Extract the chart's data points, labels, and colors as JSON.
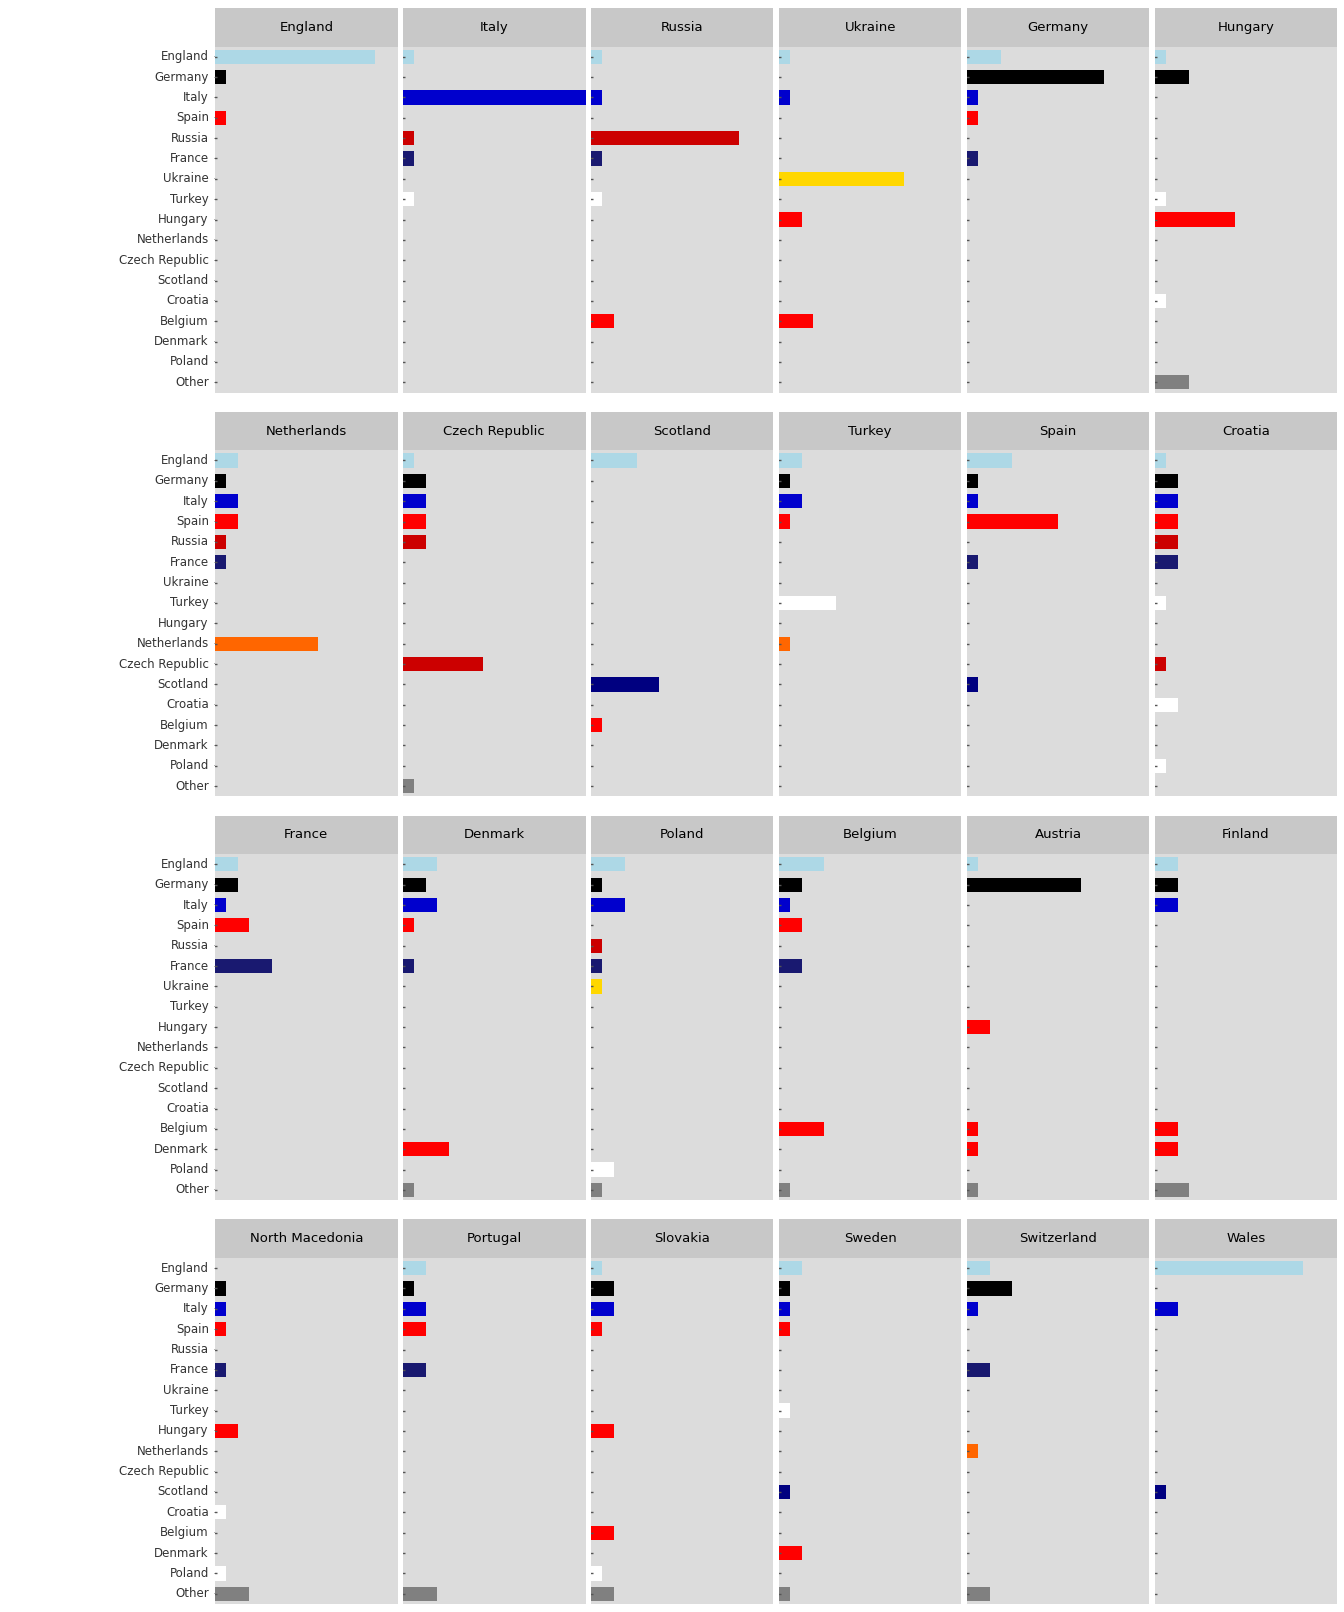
{
  "row_labels": [
    "England",
    "Germany",
    "Italy",
    "Spain",
    "Russia",
    "France",
    "Ukraine",
    "Turkey",
    "Hungary",
    "Netherlands",
    "Czech Republic",
    "Scotland",
    "Croatia",
    "Belgium",
    "Denmark",
    "Poland",
    "Other"
  ],
  "panel_teams": [
    [
      "England",
      "Italy",
      "Russia",
      "Ukraine",
      "Germany",
      "Hungary"
    ],
    [
      "Netherlands",
      "Czech Republic",
      "Scotland",
      "Turkey",
      "Spain",
      "Croatia"
    ],
    [
      "France",
      "Denmark",
      "Poland",
      "Belgium",
      "Austria",
      "Finland"
    ],
    [
      "North Macedonia",
      "Portugal",
      "Slovakia",
      "Sweden",
      "Switzerland",
      "Wales"
    ]
  ],
  "colors": {
    "England": "#ADD8E6",
    "Germany": "#000000",
    "Italy": "#0000CD",
    "Spain": "#FF0000",
    "Russia": "#CC0000",
    "France": "#191970",
    "Ukraine": "#FFD700",
    "Turkey": "#FFFFFF",
    "Hungary": "#FF0000",
    "Netherlands": "#FF6600",
    "Czech Republic": "#CC0000",
    "Scotland": "#000080",
    "Croatia": "#FFFFFF",
    "Belgium": "#FF0000",
    "Denmark": "#FF0000",
    "Poland": "#FFFFFF",
    "Other": "#808080"
  },
  "other_colors": {
    "Hungary": [
      "#808080",
      "#000080",
      "#FF0000"
    ],
    "Czech Republic": [
      "#808080"
    ],
    "Denmark": [
      "#FFD700"
    ],
    "Poland": [
      "#808080"
    ],
    "Belgium": [
      "#808080"
    ],
    "Austria": [
      "#FF0000"
    ],
    "Finland": [
      "#808080",
      "#FFD700",
      "#808080"
    ],
    "North Macedonia": [
      "#808080",
      "#FF0000"
    ],
    "Portugal": [
      "#FF0000"
    ],
    "Slovakia": [
      "#FFD700",
      "#808080"
    ],
    "Sweden": [
      "#808080"
    ],
    "Switzerland": [
      "#808080",
      "#FF6600"
    ]
  },
  "data": {
    "England": {
      "England": 14,
      "Germany": 1,
      "Italy": 0,
      "Spain": 1,
      "Russia": 0,
      "France": 0,
      "Ukraine": 0,
      "Turkey": 0,
      "Hungary": 0,
      "Netherlands": 0,
      "Czech Republic": 0,
      "Scotland": 0,
      "Croatia": 0,
      "Belgium": 0,
      "Denmark": 0,
      "Poland": 0,
      "Other": 0
    },
    "Italy": {
      "England": 1,
      "Germany": 0,
      "Italy": 16,
      "Spain": 0,
      "Russia": 1,
      "France": 1,
      "Ukraine": 0,
      "Turkey": 1,
      "Hungary": 0,
      "Netherlands": 0,
      "Czech Republic": 0,
      "Scotland": 0,
      "Croatia": 0,
      "Belgium": 0,
      "Denmark": 0,
      "Poland": 0,
      "Other": 0
    },
    "Russia": {
      "England": 1,
      "Germany": 0,
      "Italy": 1,
      "Spain": 0,
      "Russia": 13,
      "France": 1,
      "Ukraine": 0,
      "Turkey": 1,
      "Hungary": 0,
      "Netherlands": 0,
      "Czech Republic": 0,
      "Scotland": 0,
      "Croatia": 0,
      "Belgium": 2,
      "Denmark": 0,
      "Poland": 0,
      "Other": 0
    },
    "Ukraine": {
      "England": 1,
      "Germany": 0,
      "Italy": 1,
      "Spain": 0,
      "Russia": 0,
      "France": 0,
      "Ukraine": 11,
      "Turkey": 0,
      "Hungary": 2,
      "Netherlands": 0,
      "Czech Republic": 0,
      "Scotland": 0,
      "Croatia": 0,
      "Belgium": 3,
      "Denmark": 0,
      "Poland": 0,
      "Other": 0
    },
    "Germany": {
      "England": 3,
      "Germany": 12,
      "Italy": 1,
      "Spain": 1,
      "Russia": 0,
      "France": 1,
      "Ukraine": 0,
      "Turkey": 0,
      "Hungary": 0,
      "Netherlands": 0,
      "Czech Republic": 0,
      "Scotland": 0,
      "Croatia": 0,
      "Belgium": 0,
      "Denmark": 0,
      "Poland": 0,
      "Other": 0
    },
    "Hungary": {
      "England": 1,
      "Germany": 3,
      "Italy": 0,
      "Spain": 0,
      "Russia": 0,
      "France": 0,
      "Ukraine": 0,
      "Turkey": 1,
      "Hungary": 7,
      "Netherlands": 0,
      "Czech Republic": 0,
      "Scotland": 0,
      "Croatia": 1,
      "Belgium": 0,
      "Denmark": 0,
      "Poland": 0,
      "Other": 3
    },
    "Netherlands": {
      "England": 2,
      "Germany": 1,
      "Italy": 2,
      "Spain": 2,
      "Russia": 1,
      "France": 1,
      "Ukraine": 0,
      "Turkey": 0,
      "Hungary": 0,
      "Netherlands": 9,
      "Czech Republic": 0,
      "Scotland": 0,
      "Croatia": 0,
      "Belgium": 0,
      "Denmark": 0,
      "Poland": 0,
      "Other": 0
    },
    "Czech Republic": {
      "England": 1,
      "Germany": 2,
      "Italy": 2,
      "Spain": 2,
      "Russia": 2,
      "France": 0,
      "Ukraine": 0,
      "Turkey": 0,
      "Hungary": 0,
      "Netherlands": 0,
      "Czech Republic": 7,
      "Scotland": 0,
      "Croatia": 0,
      "Belgium": 0,
      "Denmark": 0,
      "Poland": 0,
      "Other": 1
    },
    "Scotland": {
      "England": 4,
      "Germany": 0,
      "Italy": 0,
      "Spain": 0,
      "Russia": 0,
      "France": 0,
      "Ukraine": 0,
      "Turkey": 0,
      "Hungary": 0,
      "Netherlands": 0,
      "Czech Republic": 0,
      "Scotland": 6,
      "Croatia": 0,
      "Belgium": 1,
      "Denmark": 0,
      "Poland": 0,
      "Other": 0
    },
    "Turkey": {
      "England": 2,
      "Germany": 1,
      "Italy": 2,
      "Spain": 1,
      "Russia": 0,
      "France": 0,
      "Ukraine": 0,
      "Turkey": 5,
      "Hungary": 0,
      "Netherlands": 1,
      "Czech Republic": 0,
      "Scotland": 0,
      "Croatia": 0,
      "Belgium": 0,
      "Denmark": 0,
      "Poland": 0,
      "Other": 0
    },
    "Spain": {
      "England": 4,
      "Germany": 1,
      "Italy": 1,
      "Spain": 8,
      "Russia": 0,
      "France": 1,
      "Ukraine": 0,
      "Turkey": 0,
      "Hungary": 0,
      "Netherlands": 0,
      "Czech Republic": 0,
      "Scotland": 1,
      "Croatia": 0,
      "Belgium": 0,
      "Denmark": 0,
      "Poland": 0,
      "Other": 0
    },
    "Croatia": {
      "England": 1,
      "Germany": 2,
      "Italy": 2,
      "Spain": 2,
      "Russia": 2,
      "France": 2,
      "Ukraine": 0,
      "Turkey": 1,
      "Hungary": 0,
      "Netherlands": 0,
      "Czech Republic": 1,
      "Scotland": 0,
      "Croatia": 2,
      "Belgium": 0,
      "Denmark": 0,
      "Poland": 1,
      "Other": 0
    },
    "France": {
      "England": 2,
      "Germany": 2,
      "Italy": 1,
      "Spain": 3,
      "Russia": 0,
      "France": 5,
      "Ukraine": 0,
      "Turkey": 0,
      "Hungary": 0,
      "Netherlands": 0,
      "Czech Republic": 0,
      "Scotland": 0,
      "Croatia": 0,
      "Belgium": 0,
      "Denmark": 0,
      "Poland": 0,
      "Other": 0
    },
    "Denmark": {
      "England": 3,
      "Germany": 2,
      "Italy": 3,
      "Spain": 1,
      "Russia": 0,
      "France": 1,
      "Ukraine": 0,
      "Turkey": 0,
      "Hungary": 0,
      "Netherlands": 0,
      "Czech Republic": 0,
      "Scotland": 0,
      "Croatia": 0,
      "Belgium": 0,
      "Denmark": 4,
      "Poland": 0,
      "Other": 1
    },
    "Poland": {
      "England": 3,
      "Germany": 1,
      "Italy": 3,
      "Spain": 0,
      "Russia": 1,
      "France": 1,
      "Ukraine": 1,
      "Turkey": 0,
      "Hungary": 0,
      "Netherlands": 0,
      "Czech Republic": 0,
      "Scotland": 0,
      "Croatia": 0,
      "Belgium": 0,
      "Denmark": 0,
      "Poland": 2,
      "Other": 1
    },
    "Belgium": {
      "England": 4,
      "Germany": 2,
      "Italy": 1,
      "Spain": 2,
      "Russia": 0,
      "France": 2,
      "Ukraine": 0,
      "Turkey": 0,
      "Hungary": 0,
      "Netherlands": 0,
      "Czech Republic": 0,
      "Scotland": 0,
      "Croatia": 0,
      "Belgium": 4,
      "Denmark": 0,
      "Poland": 0,
      "Other": 1
    },
    "Austria": {
      "England": 1,
      "Germany": 10,
      "Italy": 0,
      "Spain": 0,
      "Russia": 0,
      "France": 0,
      "Ukraine": 0,
      "Turkey": 0,
      "Hungary": 2,
      "Netherlands": 0,
      "Czech Republic": 0,
      "Scotland": 0,
      "Croatia": 0,
      "Belgium": 1,
      "Denmark": 1,
      "Poland": 0,
      "Other": 1
    },
    "Finland": {
      "England": 2,
      "Germany": 2,
      "Italy": 2,
      "Spain": 0,
      "Russia": 0,
      "France": 0,
      "Ukraine": 0,
      "Turkey": 0,
      "Hungary": 0,
      "Netherlands": 0,
      "Czech Republic": 0,
      "Scotland": 0,
      "Croatia": 0,
      "Belgium": 2,
      "Denmark": 2,
      "Poland": 0,
      "Other": 3
    },
    "North Macedonia": {
      "England": 0,
      "Germany": 1,
      "Italy": 1,
      "Spain": 1,
      "Russia": 0,
      "France": 1,
      "Ukraine": 0,
      "Turkey": 0,
      "Hungary": 2,
      "Netherlands": 0,
      "Czech Republic": 0,
      "Scotland": 0,
      "Croatia": 1,
      "Belgium": 0,
      "Denmark": 0,
      "Poland": 1,
      "Other": 3
    },
    "Portugal": {
      "England": 2,
      "Germany": 1,
      "Italy": 2,
      "Spain": 2,
      "Russia": 0,
      "France": 2,
      "Ukraine": 0,
      "Turkey": 0,
      "Hungary": 0,
      "Netherlands": 0,
      "Czech Republic": 0,
      "Scotland": 0,
      "Croatia": 0,
      "Belgium": 0,
      "Denmark": 0,
      "Poland": 0,
      "Other": 3
    },
    "Slovakia": {
      "England": 1,
      "Germany": 2,
      "Italy": 2,
      "Spain": 1,
      "Russia": 0,
      "France": 0,
      "Ukraine": 0,
      "Turkey": 0,
      "Hungary": 2,
      "Netherlands": 0,
      "Czech Republic": 0,
      "Scotland": 0,
      "Croatia": 0,
      "Belgium": 2,
      "Denmark": 0,
      "Poland": 1,
      "Other": 2
    },
    "Sweden": {
      "England": 2,
      "Germany": 1,
      "Italy": 1,
      "Spain": 1,
      "Russia": 0,
      "France": 0,
      "Ukraine": 0,
      "Turkey": 1,
      "Hungary": 0,
      "Netherlands": 0,
      "Czech Republic": 0,
      "Scotland": 1,
      "Croatia": 0,
      "Belgium": 0,
      "Denmark": 2,
      "Poland": 0,
      "Other": 1
    },
    "Switzerland": {
      "England": 2,
      "Germany": 4,
      "Italy": 1,
      "Spain": 0,
      "Russia": 0,
      "France": 2,
      "Ukraine": 0,
      "Turkey": 0,
      "Hungary": 0,
      "Netherlands": 1,
      "Czech Republic": 0,
      "Scotland": 0,
      "Croatia": 0,
      "Belgium": 0,
      "Denmark": 0,
      "Poland": 0,
      "Other": 2
    },
    "Wales": {
      "England": 13,
      "Germany": 0,
      "Italy": 2,
      "Spain": 0,
      "Russia": 0,
      "France": 0,
      "Ukraine": 0,
      "Turkey": 0,
      "Hungary": 0,
      "Netherlands": 0,
      "Czech Republic": 0,
      "Scotland": 1,
      "Croatia": 0,
      "Belgium": 0,
      "Denmark": 0,
      "Poland": 0,
      "Other": 0
    }
  },
  "max_val": 16,
  "fig_bg": "#FFFFFF",
  "panel_bg": "#DCDCDC",
  "header_bg": "#C8C8C8"
}
